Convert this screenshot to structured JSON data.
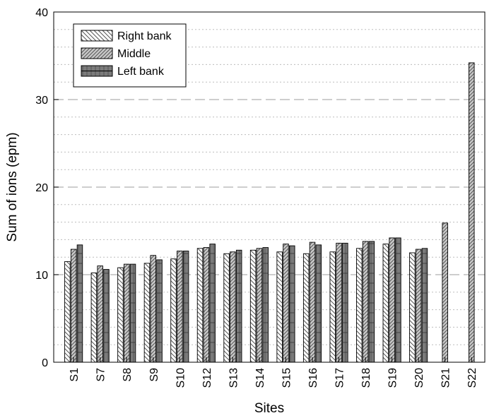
{
  "chart_data": {
    "type": "bar",
    "title": "",
    "xlabel": "Sites",
    "ylabel": "Sum of ions (epm)",
    "ylim": [
      0,
      40
    ],
    "yticks": [
      0,
      10,
      20,
      30,
      40
    ],
    "grid": {
      "major": "dashed",
      "minor": "dotted",
      "minor_step": 2
    },
    "legend_position": "top-left",
    "categories": [
      "S1",
      "S7",
      "S8",
      "S9",
      "S10",
      "S12",
      "S13",
      "S14",
      "S15",
      "S16",
      "S17",
      "S18",
      "S19",
      "S20",
      "S21",
      "S22"
    ],
    "series": [
      {
        "name": "Right bank",
        "pattern": "backslash-hatch",
        "color": "#ffffff",
        "values": [
          11.5,
          10.2,
          10.8,
          11.3,
          11.8,
          13.0,
          12.4,
          12.8,
          12.6,
          12.4,
          12.6,
          13.0,
          13.5,
          12.5,
          null,
          null
        ]
      },
      {
        "name": "Middle",
        "pattern": "slash-hatch",
        "color": "#c8c8c8",
        "values": [
          12.9,
          11.0,
          11.2,
          12.2,
          12.7,
          13.1,
          12.6,
          13.0,
          13.5,
          13.7,
          13.6,
          13.8,
          14.2,
          12.9,
          15.9,
          34.2
        ]
      },
      {
        "name": "Left bank",
        "pattern": "grid",
        "color": "#808080",
        "values": [
          13.4,
          10.6,
          11.2,
          11.7,
          12.7,
          13.5,
          12.8,
          13.1,
          13.3,
          13.4,
          13.6,
          13.8,
          14.2,
          13.0,
          null,
          null
        ]
      }
    ]
  }
}
